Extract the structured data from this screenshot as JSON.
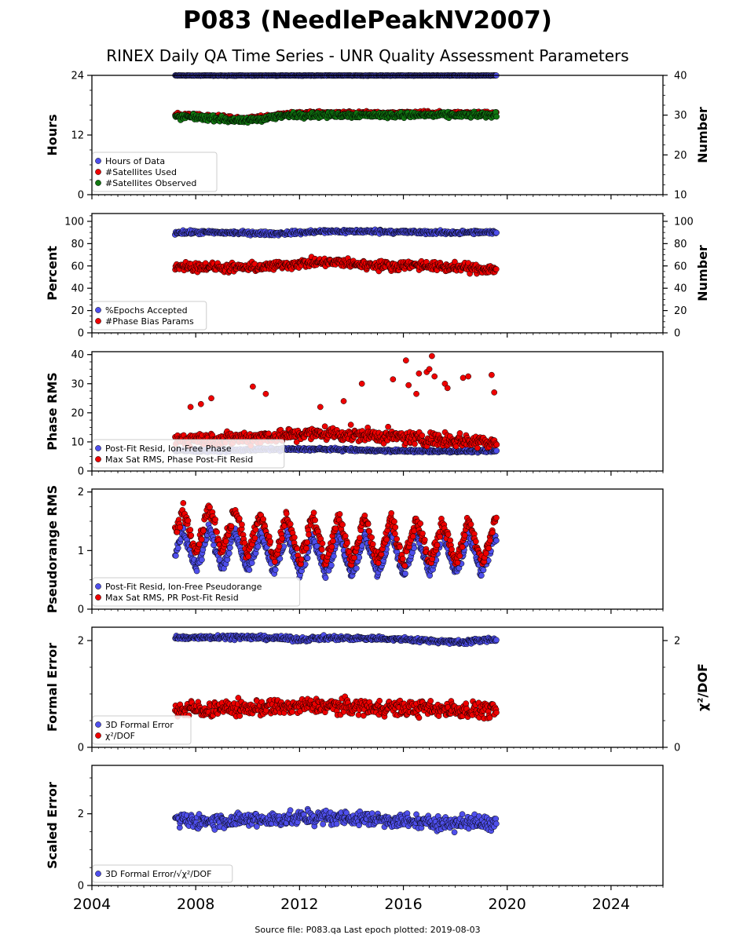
{
  "title": "P083 (NeedlePeakNV2007)",
  "subtitle": "RINEX Daily QA Time Series - UNR Quality Assessment Parameters",
  "footer": "Source file: P083.qa Last epoch plotted: 2019-08-03",
  "colors": {
    "blue": "#4f4fec",
    "red": "#ee0000",
    "green": "#117711",
    "black": "#000000"
  },
  "x_axis": {
    "range": [
      2004,
      2026
    ],
    "ticks": [
      "2004",
      "2008",
      "2012",
      "2016",
      "2020",
      "2024"
    ]
  },
  "chart_data": [
    {
      "type": "scatter",
      "panel": 1,
      "ylabel": "Hours",
      "ylabel_right": "Number",
      "ylim": [
        0,
        24
      ],
      "yticks": [
        "0",
        "12",
        "24"
      ],
      "ylim_right": [
        10,
        40
      ],
      "yticks_right": [
        "10",
        "20",
        "30",
        "40"
      ],
      "legend": "lower-left",
      "data_range_x": [
        2007.2,
        2019.6
      ],
      "series": [
        {
          "name": "Hours of Data",
          "color": "blue",
          "axis": "left",
          "x": [
            2007.3,
            2008.5,
            2009.5,
            2010.5,
            2011.5,
            2012.5,
            2013.5,
            2014.5,
            2015.5,
            2016.5,
            2017.5,
            2018.5,
            2019.5
          ],
          "y": [
            24,
            24,
            24,
            24,
            24,
            24,
            24,
            24,
            24,
            24,
            24,
            24,
            24
          ],
          "spread": 0.2
        },
        {
          "name": "#Satellites Used",
          "color": "red",
          "axis": "right",
          "x": [
            2007.3,
            2008.0,
            2009.0,
            2009.7,
            2010.5,
            2011.0,
            2011.7,
            2012.5,
            2013.5,
            2014.5,
            2015.5,
            2016.5,
            2017.5,
            2018.5,
            2019.5
          ],
          "y": [
            30.0,
            30.0,
            29.5,
            29.0,
            29.5,
            30.0,
            30.5,
            30.5,
            30.5,
            30.5,
            30.5,
            30.5,
            30.5,
            30.5,
            30.5
          ],
          "spread": 0.7
        },
        {
          "name": "#Satellites Observed",
          "color": "green",
          "axis": "right",
          "x": [
            2007.3,
            2008.0,
            2009.0,
            2009.7,
            2010.5,
            2011.0,
            2011.7,
            2012.5,
            2013.5,
            2014.5,
            2015.5,
            2016.5,
            2017.5,
            2018.5,
            2019.5
          ],
          "y": [
            29.5,
            29.5,
            29.0,
            28.5,
            29.0,
            29.5,
            30.0,
            30.0,
            30.0,
            30.0,
            30.0,
            30.0,
            30.0,
            30.0,
            30.0
          ],
          "spread": 1.0
        }
      ]
    },
    {
      "type": "scatter",
      "panel": 2,
      "ylabel": "Percent",
      "ylabel_right": "Number",
      "ylim": [
        0,
        107
      ],
      "yticks": [
        "0",
        "20",
        "40",
        "60",
        "80",
        "100"
      ],
      "ylim_right": [
        0,
        107
      ],
      "yticks_right": [
        "0",
        "20",
        "40",
        "60",
        "80",
        "100"
      ],
      "legend": "lower-left",
      "data_range_x": [
        2007.2,
        2019.6
      ],
      "series": [
        {
          "name": "%Epochs Accepted",
          "color": "blue",
          "axis": "left",
          "x": [
            2007.3,
            2009.0,
            2011.0,
            2013.0,
            2015.0,
            2017.0,
            2019.5
          ],
          "y": [
            90,
            90,
            89,
            91,
            91,
            90,
            90
          ],
          "spread": 2.5
        },
        {
          "name": "#Phase Bias Params",
          "color": "red",
          "axis": "right",
          "x": [
            2007.3,
            2008.5,
            2009.5,
            2010.5,
            2011.5,
            2012.5,
            2013.5,
            2014.5,
            2015.5,
            2016.5,
            2017.5,
            2018.5,
            2019.5
          ],
          "y": [
            60,
            59,
            58,
            59,
            61,
            63,
            63,
            61,
            60,
            61,
            59,
            58,
            57
          ],
          "spread": 6
        }
      ]
    },
    {
      "type": "scatter",
      "panel": 3,
      "ylabel": "Phase RMS",
      "ylim": [
        0,
        41
      ],
      "yticks": [
        "0",
        "10",
        "20",
        "30",
        "40"
      ],
      "legend": "lower-left",
      "data_range_x": [
        2007.2,
        2019.6
      ],
      "series": [
        {
          "name": "Post-Fit Resid, Ion-Free Phase",
          "color": "blue",
          "axis": "left",
          "x": [
            2007.3,
            2009.0,
            2011.0,
            2013.0,
            2015.0,
            2017.0,
            2019.5
          ],
          "y": [
            7.0,
            7.0,
            7.5,
            7.5,
            7.0,
            6.8,
            6.8
          ],
          "spread": 0.7
        },
        {
          "name": "Max Sat RMS, Phase Post-Fit Resid",
          "color": "red",
          "axis": "left",
          "x": [
            2007.3,
            2009.0,
            2011.0,
            2013.0,
            2015.0,
            2017.0,
            2019.5
          ],
          "y": [
            11,
            11,
            12,
            13,
            12,
            11,
            10
          ],
          "spread": 3.5
        },
        {
          "name": "",
          "color": "red",
          "axis": "left",
          "x": [
            2007.8,
            2008.2,
            2008.6,
            2010.2,
            2010.7,
            2012.8,
            2013.7,
            2014.4,
            2015.6,
            2016.1,
            2016.2,
            2016.5,
            2016.6,
            2016.9,
            2017.0,
            2017.1,
            2017.2,
            2017.6,
            2017.7,
            2018.3,
            2018.5,
            2019.4,
            2019.5
          ],
          "y": [
            22,
            23,
            25,
            29,
            26.5,
            22,
            24,
            30,
            31.5,
            38,
            29.5,
            26.5,
            33.5,
            34,
            35,
            39.5,
            32.5,
            30,
            28.5,
            32,
            32.5,
            33,
            27
          ],
          "spread": 0
        }
      ]
    },
    {
      "type": "scatter",
      "panel": 4,
      "ylabel": "Pseudorange RMS",
      "ylim": [
        0,
        2.05
      ],
      "yticks": [
        "0",
        "1",
        "2"
      ],
      "legend": "lower-left",
      "data_range_x": [
        2007.2,
        2019.6
      ],
      "series": [
        {
          "name": "Post-Fit Resid, Ion-Free Pseudorange",
          "color": "blue",
          "axis": "left",
          "x": [
            2007.25,
            2007.5,
            2007.75,
            2008.0,
            2008.25,
            2008.5,
            2008.75,
            2009.0,
            2009.25,
            2009.5,
            2009.75,
            2010.0,
            2010.25,
            2010.5,
            2010.75,
            2011.0,
            2011.25,
            2011.5,
            2011.75,
            2012.0,
            2012.25,
            2012.5,
            2012.75,
            2013.0,
            2013.25,
            2013.5,
            2013.75,
            2014.0,
            2014.25,
            2014.5,
            2014.75,
            2015.0,
            2015.25,
            2015.5,
            2015.75,
            2016.0,
            2016.25,
            2016.5,
            2016.75,
            2017.0,
            2017.25,
            2017.5,
            2017.75,
            2018.0,
            2018.25,
            2018.5,
            2018.75,
            2019.0,
            2019.25,
            2019.5
          ],
          "y": [
            0.95,
            1.35,
            1.05,
            0.7,
            0.95,
            1.4,
            1.05,
            0.7,
            0.95,
            1.35,
            1.0,
            0.65,
            0.9,
            1.3,
            1.0,
            0.65,
            0.9,
            1.3,
            0.95,
            0.6,
            0.85,
            1.3,
            0.95,
            0.6,
            0.85,
            1.3,
            0.95,
            0.6,
            0.85,
            1.3,
            0.95,
            0.6,
            0.85,
            1.35,
            0.95,
            0.6,
            0.85,
            1.3,
            0.95,
            0.6,
            0.85,
            1.3,
            0.95,
            0.6,
            0.85,
            1.3,
            0.95,
            0.6,
            0.85,
            1.2
          ],
          "spread": 0.12
        },
        {
          "name": "Max Sat RMS, PR Post-Fit Resid",
          "color": "red",
          "axis": "left",
          "x": [
            2007.25,
            2007.5,
            2007.75,
            2008.0,
            2008.25,
            2008.5,
            2008.75,
            2009.0,
            2009.25,
            2009.5,
            2009.75,
            2010.0,
            2010.25,
            2010.5,
            2010.75,
            2011.0,
            2011.25,
            2011.5,
            2011.75,
            2012.0,
            2012.25,
            2012.5,
            2012.75,
            2013.0,
            2013.25,
            2013.5,
            2013.75,
            2014.0,
            2014.25,
            2014.5,
            2014.75,
            2015.0,
            2015.25,
            2015.5,
            2015.75,
            2016.0,
            2016.25,
            2016.5,
            2016.75,
            2017.0,
            2017.25,
            2017.5,
            2017.75,
            2018.0,
            2018.25,
            2018.5,
            2018.75,
            2019.0,
            2019.25,
            2019.5
          ],
          "y": [
            1.3,
            1.7,
            1.4,
            0.95,
            1.3,
            1.75,
            1.4,
            0.95,
            1.3,
            1.7,
            1.35,
            0.9,
            1.25,
            1.65,
            1.3,
            0.85,
            1.2,
            1.6,
            1.25,
            0.8,
            1.15,
            1.6,
            1.25,
            0.8,
            1.15,
            1.6,
            1.2,
            0.8,
            1.1,
            1.6,
            1.2,
            0.8,
            1.1,
            1.6,
            1.2,
            0.8,
            1.1,
            1.55,
            1.2,
            0.8,
            1.1,
            1.5,
            1.15,
            0.8,
            1.1,
            1.55,
            1.15,
            0.8,
            1.05,
            1.5
          ],
          "spread": 0.18
        }
      ]
    },
    {
      "type": "scatter",
      "panel": 5,
      "ylabel": "Formal Error",
      "ylabel_right": "χ²/DOF",
      "ylim": [
        0,
        2.25
      ],
      "yticks": [
        "0",
        "2"
      ],
      "ylim_right": [
        0,
        2.25
      ],
      "yticks_right": [
        "0",
        "2"
      ],
      "legend": "lower-left",
      "data_range_x": [
        2007.2,
        2019.6
      ],
      "series": [
        {
          "name": "3D Formal Error",
          "color": "blue",
          "axis": "left",
          "x": [
            2007.3,
            2009.0,
            2011.0,
            2012.0,
            2013.0,
            2015.0,
            2017.0,
            2018.0,
            2019.5
          ],
          "y": [
            2.05,
            2.07,
            2.05,
            2.02,
            2.05,
            2.04,
            2.0,
            1.97,
            2.02
          ],
          "spread": 0.06
        },
        {
          "name": "χ²/DOF",
          "color": "red",
          "axis": "right",
          "x": [
            2007.3,
            2009.0,
            2011.0,
            2013.0,
            2015.0,
            2017.0,
            2019.5
          ],
          "y": [
            0.7,
            0.72,
            0.75,
            0.78,
            0.75,
            0.72,
            0.7
          ],
          "spread": 0.22
        }
      ]
    },
    {
      "type": "scatter",
      "panel": 6,
      "ylabel": "Scaled Error",
      "ylim": [
        0,
        3.35
      ],
      "yticks": [
        "0",
        "2"
      ],
      "legend": "lower-left",
      "data_range_x": [
        2007.2,
        2019.6
      ],
      "series": [
        {
          "name": "3D Formal Error/√χ²/DOF",
          "color": "blue",
          "axis": "left",
          "x": [
            2007.3,
            2009.0,
            2011.0,
            2013.0,
            2015.0,
            2017.0,
            2019.5
          ],
          "y": [
            1.8,
            1.8,
            1.85,
            1.9,
            1.85,
            1.75,
            1.75
          ],
          "spread": 0.3
        }
      ]
    }
  ]
}
